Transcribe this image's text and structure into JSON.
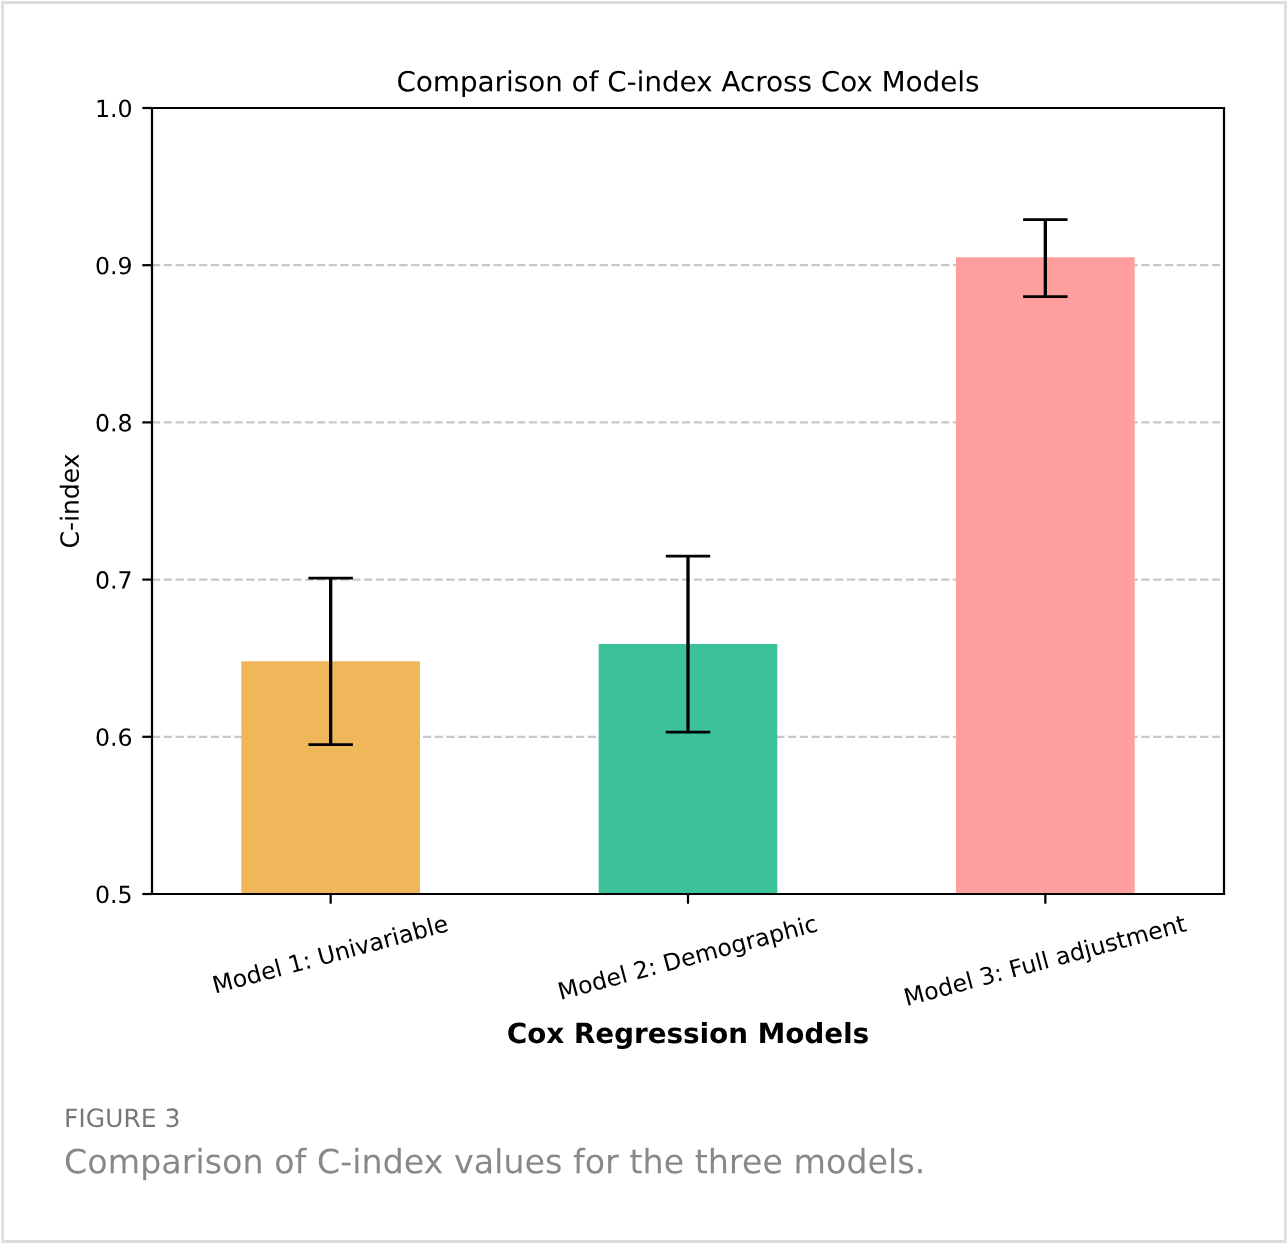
{
  "chart_data": {
    "type": "bar",
    "title": "Comparison of C-index Across Cox Models",
    "xlabel": "Cox Regression Models",
    "ylabel": "C-index",
    "categories": [
      "Model 1: Univariable",
      "Model 2: Demographic",
      "Model 3: Full adjustment"
    ],
    "values": [
      0.648,
      0.659,
      0.905
    ],
    "colors": [
      "#f0b75a",
      "#3cc29a",
      "#ff9e9e"
    ],
    "errors": [
      [
        0.595,
        0.701
      ],
      [
        0.603,
        0.715
      ],
      [
        0.88,
        0.929
      ]
    ],
    "ylim": [
      0.5,
      1.0
    ],
    "yticks": [
      0.5,
      0.6,
      0.7,
      0.8,
      0.9,
      {
        "value": 1,
        "label": "1.0"
      }
    ],
    "grid": "y",
    "annotations": [
      "FIGURE 3",
      "Comparison of C-index values for the three models."
    ]
  }
}
